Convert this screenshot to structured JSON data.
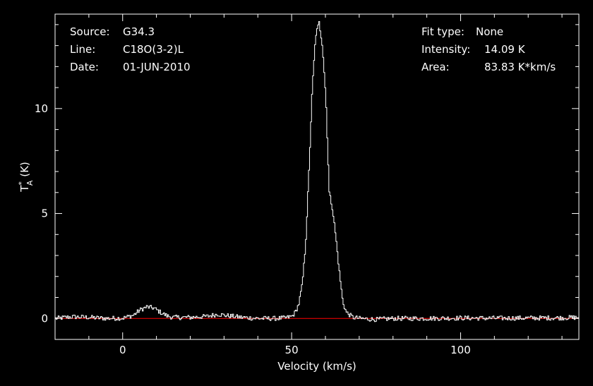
{
  "header": {
    "left": [
      {
        "key": "Source:",
        "value": "G34.3"
      },
      {
        "key": "Line:",
        "value": "C18O(3-2)L"
      },
      {
        "key": "Date:",
        "value": "01-JUN-2010"
      }
    ],
    "right": [
      {
        "key": "Fit type:",
        "value": "None"
      },
      {
        "key": "Intensity:",
        "value": "14.09 K"
      },
      {
        "key": "Area:",
        "value": "83.83 K*km/s"
      }
    ]
  },
  "chart_data": {
    "type": "line",
    "xlabel": "Velocity (km/s)",
    "ylabel": "T*A (K)",
    "xlim": [
      -20,
      135
    ],
    "ylim": [
      -1,
      14.5
    ],
    "xticks": [
      0,
      50,
      100
    ],
    "yticks": [
      0,
      5,
      10
    ],
    "grid": false,
    "baseline": {
      "y": 0,
      "color": "#ff0000"
    },
    "series": [
      {
        "color": "#ffffff",
        "x": [
          -20,
          -15,
          -10,
          -5,
          0,
          3,
          5,
          7,
          9,
          11,
          13,
          15,
          20,
          25,
          28,
          30,
          35,
          40,
          45,
          48,
          50,
          51,
          52,
          53,
          54,
          55,
          56,
          57,
          58,
          59,
          60,
          61,
          62,
          63,
          64,
          65,
          66,
          68,
          70,
          75,
          80,
          90,
          100,
          110,
          120,
          130,
          135
        ],
        "y": [
          0,
          0.08,
          0.05,
          0,
          0.02,
          0.15,
          0.4,
          0.55,
          0.5,
          0.3,
          0.12,
          0.05,
          0.05,
          0.1,
          0.2,
          0.15,
          0.05,
          0,
          0,
          0.02,
          0.1,
          0.3,
          0.7,
          1.6,
          3.5,
          7,
          11,
          13.5,
          14.09,
          13,
          10.5,
          6,
          5.2,
          3.8,
          2.2,
          0.8,
          0.3,
          0.05,
          0,
          -0.05,
          0,
          0,
          0.02,
          0.01,
          0.02,
          0.03,
          0.05
        ]
      }
    ]
  }
}
